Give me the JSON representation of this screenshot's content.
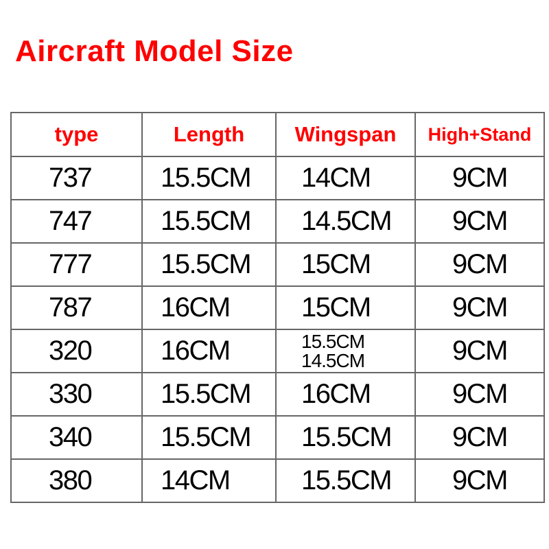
{
  "title": "Aircraft Model Size",
  "table": {
    "headers": [
      "type",
      "Length",
      "Wingspan",
      "High+Stand"
    ],
    "rows": [
      {
        "type": "737",
        "length": "15.5CM",
        "wingspan": [
          "14CM"
        ],
        "high": "9CM"
      },
      {
        "type": "747",
        "length": "15.5CM",
        "wingspan": [
          "14.5CM"
        ],
        "high": "9CM"
      },
      {
        "type": "777",
        "length": "15.5CM",
        "wingspan": [
          "15CM"
        ],
        "high": "9CM"
      },
      {
        "type": "787",
        "length": "16CM",
        "wingspan": [
          "15CM"
        ],
        "high": "9CM"
      },
      {
        "type": "320",
        "length": "16CM",
        "wingspan": [
          "15.5CM",
          "14.5CM"
        ],
        "high": "9CM"
      },
      {
        "type": "330",
        "length": "15.5CM",
        "wingspan": [
          "16CM"
        ],
        "high": "9CM"
      },
      {
        "type": "340",
        "length": "15.5CM",
        "wingspan": [
          "15.5CM"
        ],
        "high": "9CM"
      },
      {
        "type": "380",
        "length": "14CM",
        "wingspan": [
          "15.5CM"
        ],
        "high": "9CM"
      }
    ]
  }
}
